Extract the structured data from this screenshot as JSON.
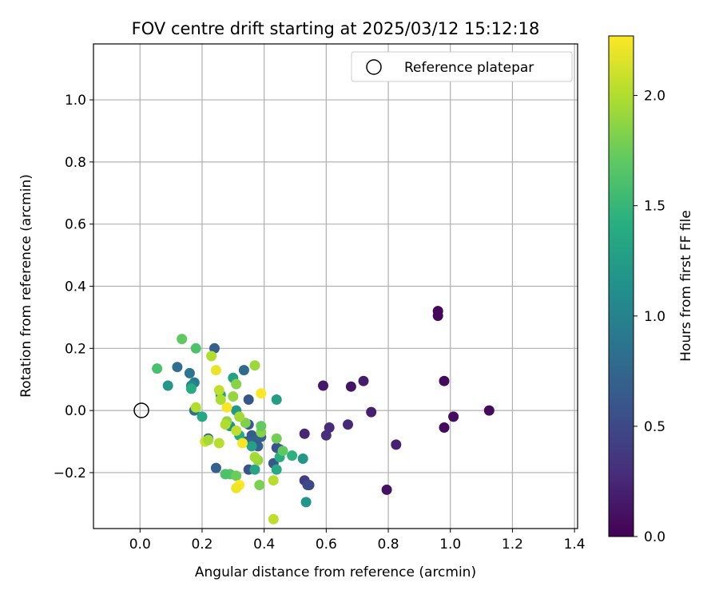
{
  "chart_data": {
    "type": "scatter",
    "title": "FOV centre drift starting at 2025/03/12 15:12:18",
    "xlabel": "Angular distance from reference (arcmin)",
    "ylabel": "Rotation from reference (arcmin)",
    "colorbar_label": "Hours from first FF file",
    "colormap": "viridis",
    "xlim": [
      -0.15,
      1.41
    ],
    "ylim": [
      -0.38,
      1.18
    ],
    "clim": [
      0.0,
      2.27
    ],
    "x_ticks": [
      0.0,
      0.2,
      0.4,
      0.6,
      0.8,
      1.0,
      1.2,
      1.4
    ],
    "x_tick_labels": [
      "0.0",
      "0.2",
      "0.4",
      "0.6",
      "0.8",
      "1.0",
      "1.2",
      "1.4"
    ],
    "y_ticks": [
      -0.2,
      0.0,
      0.2,
      0.4,
      0.6,
      0.8,
      1.0
    ],
    "y_tick_labels": [
      "−0.2",
      "0.0",
      "0.2",
      "0.4",
      "0.6",
      "0.8",
      "1.0"
    ],
    "colorbar_ticks": [
      0.0,
      0.5,
      1.0,
      1.5,
      2.0
    ],
    "colorbar_tick_labels": [
      "0.0",
      "0.5",
      "1.0",
      "1.5",
      "2.0"
    ],
    "grid": true,
    "legend": {
      "placement": "top-right",
      "entries": [
        {
          "label": "Reference platepar",
          "marker": "hollow-circle",
          "color": "#000000"
        }
      ]
    },
    "reference_point": {
      "x": 0.0,
      "y": 0.0
    },
    "points": [
      {
        "x": 0.96,
        "y": 0.32,
        "t": 0.03
      },
      {
        "x": 0.96,
        "y": 0.305,
        "t": 0.04
      },
      {
        "x": 1.125,
        "y": 0.0,
        "t": 0.06
      },
      {
        "x": 1.01,
        "y": -0.02,
        "t": 0.08
      },
      {
        "x": 0.98,
        "y": 0.095,
        "t": 0.05
      },
      {
        "x": 0.98,
        "y": -0.055,
        "t": 0.07
      },
      {
        "x": 0.795,
        "y": -0.255,
        "t": 0.1
      },
      {
        "x": 0.72,
        "y": 0.095,
        "t": 0.18
      },
      {
        "x": 0.68,
        "y": 0.077,
        "t": 0.12
      },
      {
        "x": 0.745,
        "y": -0.005,
        "t": 0.2
      },
      {
        "x": 0.825,
        "y": -0.11,
        "t": 0.22
      },
      {
        "x": 0.59,
        "y": 0.08,
        "t": 0.15
      },
      {
        "x": 0.67,
        "y": -0.045,
        "t": 0.25
      },
      {
        "x": 0.61,
        "y": -0.055,
        "t": 0.28
      },
      {
        "x": 0.6,
        "y": -0.08,
        "t": 0.3
      },
      {
        "x": 0.53,
        "y": -0.075,
        "t": 0.24
      },
      {
        "x": 0.53,
        "y": -0.225,
        "t": 0.4
      },
      {
        "x": 0.545,
        "y": -0.24,
        "t": 0.45
      },
      {
        "x": 0.54,
        "y": -0.24,
        "t": 0.5
      },
      {
        "x": 0.44,
        "y": -0.12,
        "t": 0.55
      },
      {
        "x": 0.45,
        "y": -0.125,
        "t": 0.6
      },
      {
        "x": 0.43,
        "y": -0.17,
        "t": 0.62
      },
      {
        "x": 0.35,
        "y": -0.19,
        "t": 0.58
      },
      {
        "x": 0.36,
        "y": -0.08,
        "t": 0.66
      },
      {
        "x": 0.37,
        "y": -0.095,
        "t": 0.7
      },
      {
        "x": 0.38,
        "y": -0.115,
        "t": 0.68
      },
      {
        "x": 0.39,
        "y": -0.085,
        "t": 0.72
      },
      {
        "x": 0.35,
        "y": -0.045,
        "t": 0.65
      },
      {
        "x": 0.35,
        "y": 0.035,
        "t": 0.6
      },
      {
        "x": 0.335,
        "y": 0.13,
        "t": 0.78
      },
      {
        "x": 0.34,
        "y": -0.1,
        "t": 0.75
      },
      {
        "x": 0.24,
        "y": 0.2,
        "t": 0.68
      },
      {
        "x": 0.245,
        "y": -0.185,
        "t": 0.7
      },
      {
        "x": 0.22,
        "y": -0.09,
        "t": 0.74
      },
      {
        "x": 0.12,
        "y": 0.14,
        "t": 0.82
      },
      {
        "x": 0.16,
        "y": 0.12,
        "t": 0.88
      },
      {
        "x": 0.175,
        "y": 0.09,
        "t": 0.92
      },
      {
        "x": 0.165,
        "y": 0.08,
        "t": 1.05
      },
      {
        "x": 0.175,
        "y": 0.0,
        "t": 0.85
      },
      {
        "x": 0.09,
        "y": 0.08,
        "t": 1.2
      },
      {
        "x": 0.165,
        "y": 0.07,
        "t": 1.4
      },
      {
        "x": 0.2,
        "y": -0.02,
        "t": 1.35
      },
      {
        "x": 0.3,
        "y": 0.105,
        "t": 1.3
      },
      {
        "x": 0.26,
        "y": 0.05,
        "t": 1.25
      },
      {
        "x": 0.31,
        "y": 0.0,
        "t": 1.2
      },
      {
        "x": 0.29,
        "y": -0.05,
        "t": 1.15
      },
      {
        "x": 0.32,
        "y": -0.08,
        "t": 1.35
      },
      {
        "x": 0.36,
        "y": -0.115,
        "t": 1.28
      },
      {
        "x": 0.37,
        "y": -0.19,
        "t": 1.32
      },
      {
        "x": 0.44,
        "y": 0.035,
        "t": 1.25
      },
      {
        "x": 0.45,
        "y": -0.15,
        "t": 1.4
      },
      {
        "x": 0.44,
        "y": -0.19,
        "t": 1.38
      },
      {
        "x": 0.49,
        "y": -0.145,
        "t": 1.45
      },
      {
        "x": 0.525,
        "y": -0.155,
        "t": 1.2
      },
      {
        "x": 0.535,
        "y": -0.295,
        "t": 1.18
      },
      {
        "x": 0.29,
        "y": -0.205,
        "t": 1.65
      },
      {
        "x": 0.275,
        "y": -0.205,
        "t": 1.62
      },
      {
        "x": 0.31,
        "y": -0.21,
        "t": 1.75
      },
      {
        "x": 0.385,
        "y": -0.24,
        "t": 1.8
      },
      {
        "x": 0.38,
        "y": -0.16,
        "t": 1.9
      },
      {
        "x": 0.37,
        "y": -0.15,
        "t": 1.95
      },
      {
        "x": 0.39,
        "y": -0.07,
        "t": 1.85
      },
      {
        "x": 0.39,
        "y": -0.05,
        "t": 1.72
      },
      {
        "x": 0.46,
        "y": -0.13,
        "t": 1.7
      },
      {
        "x": 0.44,
        "y": -0.09,
        "t": 1.78
      },
      {
        "x": 0.34,
        "y": -0.04,
        "t": 1.82
      },
      {
        "x": 0.32,
        "y": -0.02,
        "t": 1.95
      },
      {
        "x": 0.3,
        "y": 0.045,
        "t": 1.9
      },
      {
        "x": 0.31,
        "y": 0.085,
        "t": 1.85
      },
      {
        "x": 0.37,
        "y": 0.145,
        "t": 1.92
      },
      {
        "x": 0.28,
        "y": -0.035,
        "t": 1.88
      },
      {
        "x": 0.275,
        "y": -0.045,
        "t": 2.0
      },
      {
        "x": 0.31,
        "y": -0.065,
        "t": 2.05
      },
      {
        "x": 0.255,
        "y": -0.105,
        "t": 2.02
      },
      {
        "x": 0.21,
        "y": -0.1,
        "t": 2.1
      },
      {
        "x": 0.22,
        "y": -0.095,
        "t": 1.95
      },
      {
        "x": 0.18,
        "y": 0.01,
        "t": 2.0
      },
      {
        "x": 0.255,
        "y": 0.065,
        "t": 2.05
      },
      {
        "x": 0.26,
        "y": 0.035,
        "t": 1.98
      },
      {
        "x": 0.28,
        "y": 0.01,
        "t": 2.25
      },
      {
        "x": 0.23,
        "y": 0.175,
        "t": 2.0
      },
      {
        "x": 0.245,
        "y": 0.13,
        "t": 2.2
      },
      {
        "x": 0.39,
        "y": 0.055,
        "t": 2.27
      },
      {
        "x": 0.33,
        "y": -0.105,
        "t": 2.25
      },
      {
        "x": 0.32,
        "y": -0.24,
        "t": 2.27
      },
      {
        "x": 0.31,
        "y": -0.25,
        "t": 2.22
      },
      {
        "x": 0.43,
        "y": -0.225,
        "t": 2.02
      },
      {
        "x": 0.43,
        "y": -0.35,
        "t": 2.05
      },
      {
        "x": 0.135,
        "y": 0.23,
        "t": 1.7
      },
      {
        "x": 0.18,
        "y": 0.2,
        "t": 1.62
      },
      {
        "x": 0.055,
        "y": 0.135,
        "t": 1.6
      }
    ]
  }
}
